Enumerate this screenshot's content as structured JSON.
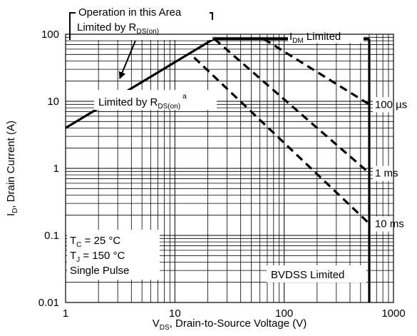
{
  "chart_data": {
    "type": "line",
    "x_scale": "log",
    "y_scale": "log",
    "xlim": [
      1,
      1000
    ],
    "ylim": [
      0.01,
      100
    ],
    "grid": true,
    "xlabel": {
      "main": "V",
      "sub": "DS",
      "rest": ", Drain-to-Source Voltage (V)"
    },
    "ylabel": {
      "main": "I",
      "sub": "D",
      "rest": ", Drain Current (A)"
    },
    "x_ticks": [
      {
        "value": 1,
        "label": "1"
      },
      {
        "value": 10,
        "label": "10"
      },
      {
        "value": 100,
        "label": "100"
      },
      {
        "value": 1000,
        "label": "1000"
      }
    ],
    "y_ticks": [
      {
        "value": 100,
        "label": "100"
      },
      {
        "value": 10,
        "label": "10"
      },
      {
        "value": 1,
        "label": "1"
      },
      {
        "value": 0.1,
        "label": "0.1"
      },
      {
        "value": 0.01,
        "label": "0.01"
      }
    ],
    "series": [
      {
        "name": "Limited by RDS(on)",
        "style": "solid",
        "x": [
          1,
          22.6
        ],
        "y": [
          4,
          85
        ]
      },
      {
        "name": "IDM Limited",
        "style": "solid",
        "x": [
          22.6,
          600
        ],
        "y": [
          85,
          85
        ]
      },
      {
        "name": "BVDSS Limited",
        "style": "solid",
        "x": [
          600,
          600
        ],
        "y": [
          85,
          0.01
        ]
      },
      {
        "name": "100 µs",
        "style": "dashed",
        "x": [
          65,
          600
        ],
        "y": [
          85,
          9
        ]
      },
      {
        "name": "1 ms",
        "style": "dashed",
        "x": [
          23,
          600
        ],
        "y": [
          85,
          0.85
        ]
      },
      {
        "name": "10 ms",
        "style": "dashed",
        "x": [
          15,
          600
        ],
        "y": [
          45,
          0.15
        ]
      }
    ],
    "annotations": {
      "top_box": {
        "line1": "Operation in this Area",
        "line2_main": "Limited by R",
        "line2_sub": "DS(on)"
      },
      "idm": {
        "main": "I",
        "sub": "DM",
        "rest": " Limited"
      },
      "rds_label": {
        "main": "Limited by R",
        "sub": "DS(on)",
        "sup": "a"
      },
      "curve_labels": [
        {
          "text": "100 µs",
          "x": 600,
          "y": 9
        },
        {
          "text": "1 ms",
          "x": 600,
          "y": 0.85
        },
        {
          "text": "10 ms",
          "x": 600,
          "y": 0.15
        }
      ],
      "conditions": [
        {
          "main": "T",
          "sub": "C",
          "rest": " = 25 °C"
        },
        {
          "main": "T",
          "sub": "J",
          "rest": " = 150 °C"
        },
        {
          "main": "Single Pulse",
          "sub": "",
          "rest": ""
        }
      ],
      "bvdss": "BVDSS Limited"
    }
  }
}
